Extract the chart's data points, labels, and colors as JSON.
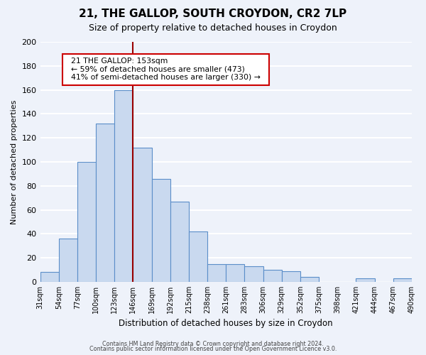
{
  "title": "21, THE GALLOP, SOUTH CROYDON, CR2 7LP",
  "subtitle": "Size of property relative to detached houses in Croydon",
  "xlabel": "Distribution of detached houses by size in Croydon",
  "ylabel": "Number of detached properties",
  "bin_labels": [
    "31sqm",
    "54sqm",
    "77sqm",
    "100sqm",
    "123sqm",
    "146sqm",
    "169sqm",
    "192sqm",
    "215sqm",
    "238sqm",
    "261sqm",
    "283sqm",
    "306sqm",
    "329sqm",
    "352sqm",
    "375sqm",
    "398sqm",
    "421sqm",
    "444sqm",
    "467sqm",
    "490sqm"
  ],
  "bar_heights": [
    8,
    36,
    100,
    132,
    160,
    112,
    86,
    67,
    42,
    15,
    15,
    13,
    10,
    9,
    4,
    0,
    0,
    3,
    0,
    3
  ],
  "bar_color": "#c9d9ef",
  "bar_edge_color": "#5b8ec9",
  "vline_color": "#990000",
  "ylim": [
    0,
    200
  ],
  "yticks": [
    0,
    20,
    40,
    60,
    80,
    100,
    120,
    140,
    160,
    180,
    200
  ],
  "annotation_title": "21 THE GALLOP: 153sqm",
  "annotation_line1": "← 59% of detached houses are smaller (473)",
  "annotation_line2": "41% of semi-detached houses are larger (330) →",
  "annotation_box_color": "#ffffff",
  "annotation_box_edge": "#cc0000",
  "footer1": "Contains HM Land Registry data © Crown copyright and database right 2024.",
  "footer2": "Contains public sector information licensed under the Open Government Licence v3.0.",
  "background_color": "#eef2fa",
  "grid_color": "#ffffff"
}
